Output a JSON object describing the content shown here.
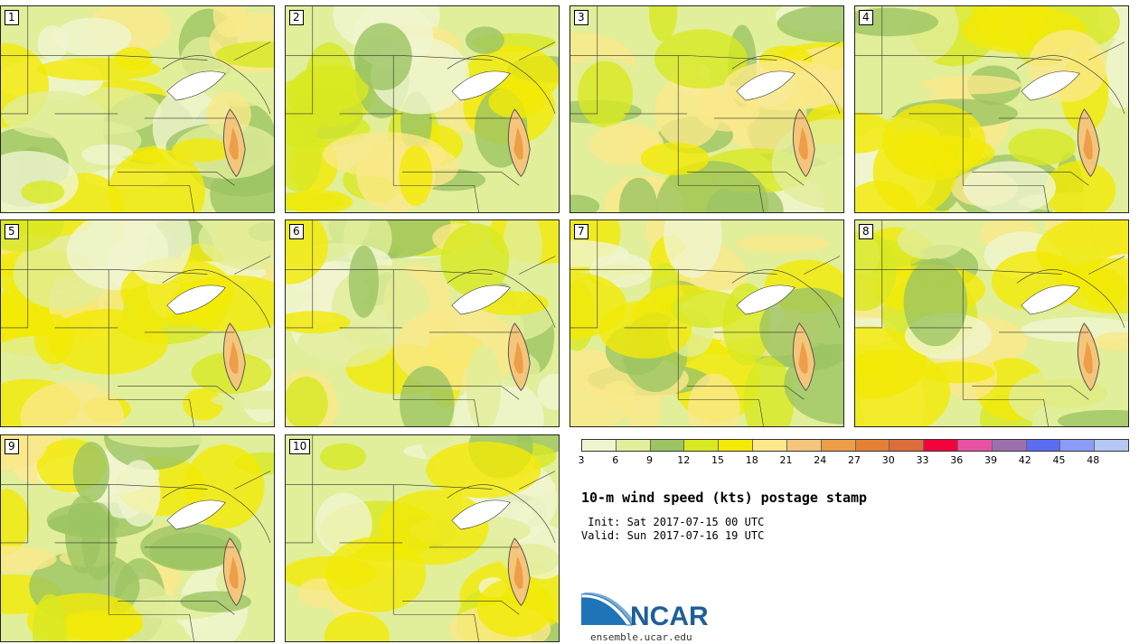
{
  "panels": [
    {
      "label": "1"
    },
    {
      "label": "2"
    },
    {
      "label": "3"
    },
    {
      "label": "4"
    },
    {
      "label": "5"
    },
    {
      "label": "6"
    },
    {
      "label": "7"
    },
    {
      "label": "8"
    },
    {
      "label": "9"
    },
    {
      "label": "10"
    }
  ],
  "colorbar": {
    "tick_labels": [
      "3",
      "6",
      "9",
      "12",
      "15",
      "18",
      "21",
      "24",
      "27",
      "30",
      "33",
      "36",
      "39",
      "42",
      "45",
      "48"
    ],
    "colors": [
      "#f0f5d0",
      "#e1ee9a",
      "#9cc463",
      "#d8e822",
      "#f3ea05",
      "#fae88a",
      "#f4c67c",
      "#ee9d48",
      "#e58135",
      "#db6e3b",
      "#f3033c",
      "#e852a4",
      "#9b71ad",
      "#5c6cf2",
      "#8a9cf7",
      "#b5c7f5"
    ]
  },
  "title": "10-m wind speed (kts) postage stamp",
  "init_line": " Init: Sat 2017-07-15 00 UTC",
  "valid_line": "Valid: Sun 2017-07-16 19 UTC",
  "logo": {
    "text": "NCAR",
    "url": "ensemble.ucar.edu"
  }
}
